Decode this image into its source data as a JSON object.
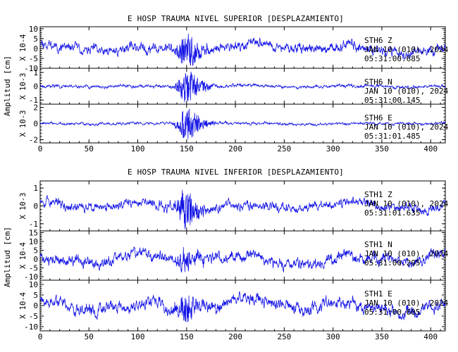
{
  "chart_data": [
    {
      "type": "line",
      "title": "E HOSP TRAUMA NIVEL SUPERIOR [DESPLAZAMIENTO]",
      "ylabel": "Amplitud [cm]",
      "xlim": [
        0,
        415
      ],
      "xticks": [
        0,
        50,
        100,
        150,
        200,
        250,
        300,
        350,
        400
      ],
      "panels": [
        {
          "scale_label": "X 10-4",
          "ylim": [
            -10,
            11
          ],
          "yticks": [
            10,
            5,
            0,
            -5,
            -10
          ],
          "station": [
            "STH6 Z",
            "JAN 10 (010), 2024",
            "05:31:00.685"
          ],
          "burst_at": 150,
          "noise_amp": 3.2,
          "burst_amp": 7.5,
          "drift_amp": 2.6,
          "seed": 11
        },
        {
          "scale_label": "X 10-3",
          "ylim": [
            -1.3,
            1.3
          ],
          "yticks": [
            1,
            0,
            -1
          ],
          "station": [
            "STH6 N",
            "JAN 10 (010), 2024",
            "05:31:00.145"
          ],
          "burst_at": 150,
          "noise_amp": 0.15,
          "burst_amp": 1.05,
          "drift_amp": 0.05,
          "seed": 23
        },
        {
          "scale_label": "X 10-3",
          "ylim": [
            -2.4,
            2.4
          ],
          "yticks": [
            2,
            0,
            -2
          ],
          "station": [
            "STH6 E",
            "JAN 10 (010), 2024",
            "05:31:01.485"
          ],
          "burst_at": 150,
          "noise_amp": 0.22,
          "burst_amp": 1.9,
          "drift_amp": 0.08,
          "seed": 37
        }
      ]
    },
    {
      "type": "line",
      "title": "E HOSP TRAUMA NIVEL INFERIOR [DESPLAZAMIENTO]",
      "ylabel": "Amplitud [cm]",
      "xlim": [
        0,
        415
      ],
      "xticks": [
        0,
        50,
        100,
        150,
        200,
        250,
        300,
        350,
        400
      ],
      "panels": [
        {
          "scale_label": "X 10-3",
          "ylim": [
            -1.4,
            1.4
          ],
          "yticks": [
            1,
            0,
            -1
          ],
          "station": [
            "STH1 Z",
            "JAN 10 (010), 2024",
            "05:31:01.635"
          ],
          "burst_at": 148,
          "noise_amp": 0.35,
          "burst_amp": 0.9,
          "drift_amp": 0.28,
          "seed": 53
        },
        {
          "scale_label": "X 10-4",
          "ylim": [
            -12,
            16
          ],
          "yticks": [
            15,
            10,
            5,
            0,
            -5,
            -10
          ],
          "station": [
            "STH1 N",
            "JAN 10 (010), 2024",
            "05:31:00.205"
          ],
          "burst_at": 150,
          "noise_amp": 4.2,
          "burst_amp": 4.5,
          "drift_amp": 3.2,
          "seed": 71
        },
        {
          "scale_label": "X 10-4",
          "ylim": [
            -12,
            12
          ],
          "yticks": [
            10,
            5,
            0,
            -5,
            -10
          ],
          "station": [
            "STH1 E",
            "JAN 10 (010), 2024",
            "05:31:00.605"
          ],
          "burst_at": 148,
          "noise_amp": 3.8,
          "burst_amp": 5.0,
          "drift_amp": 2.8,
          "seed": 89
        }
      ]
    }
  ]
}
